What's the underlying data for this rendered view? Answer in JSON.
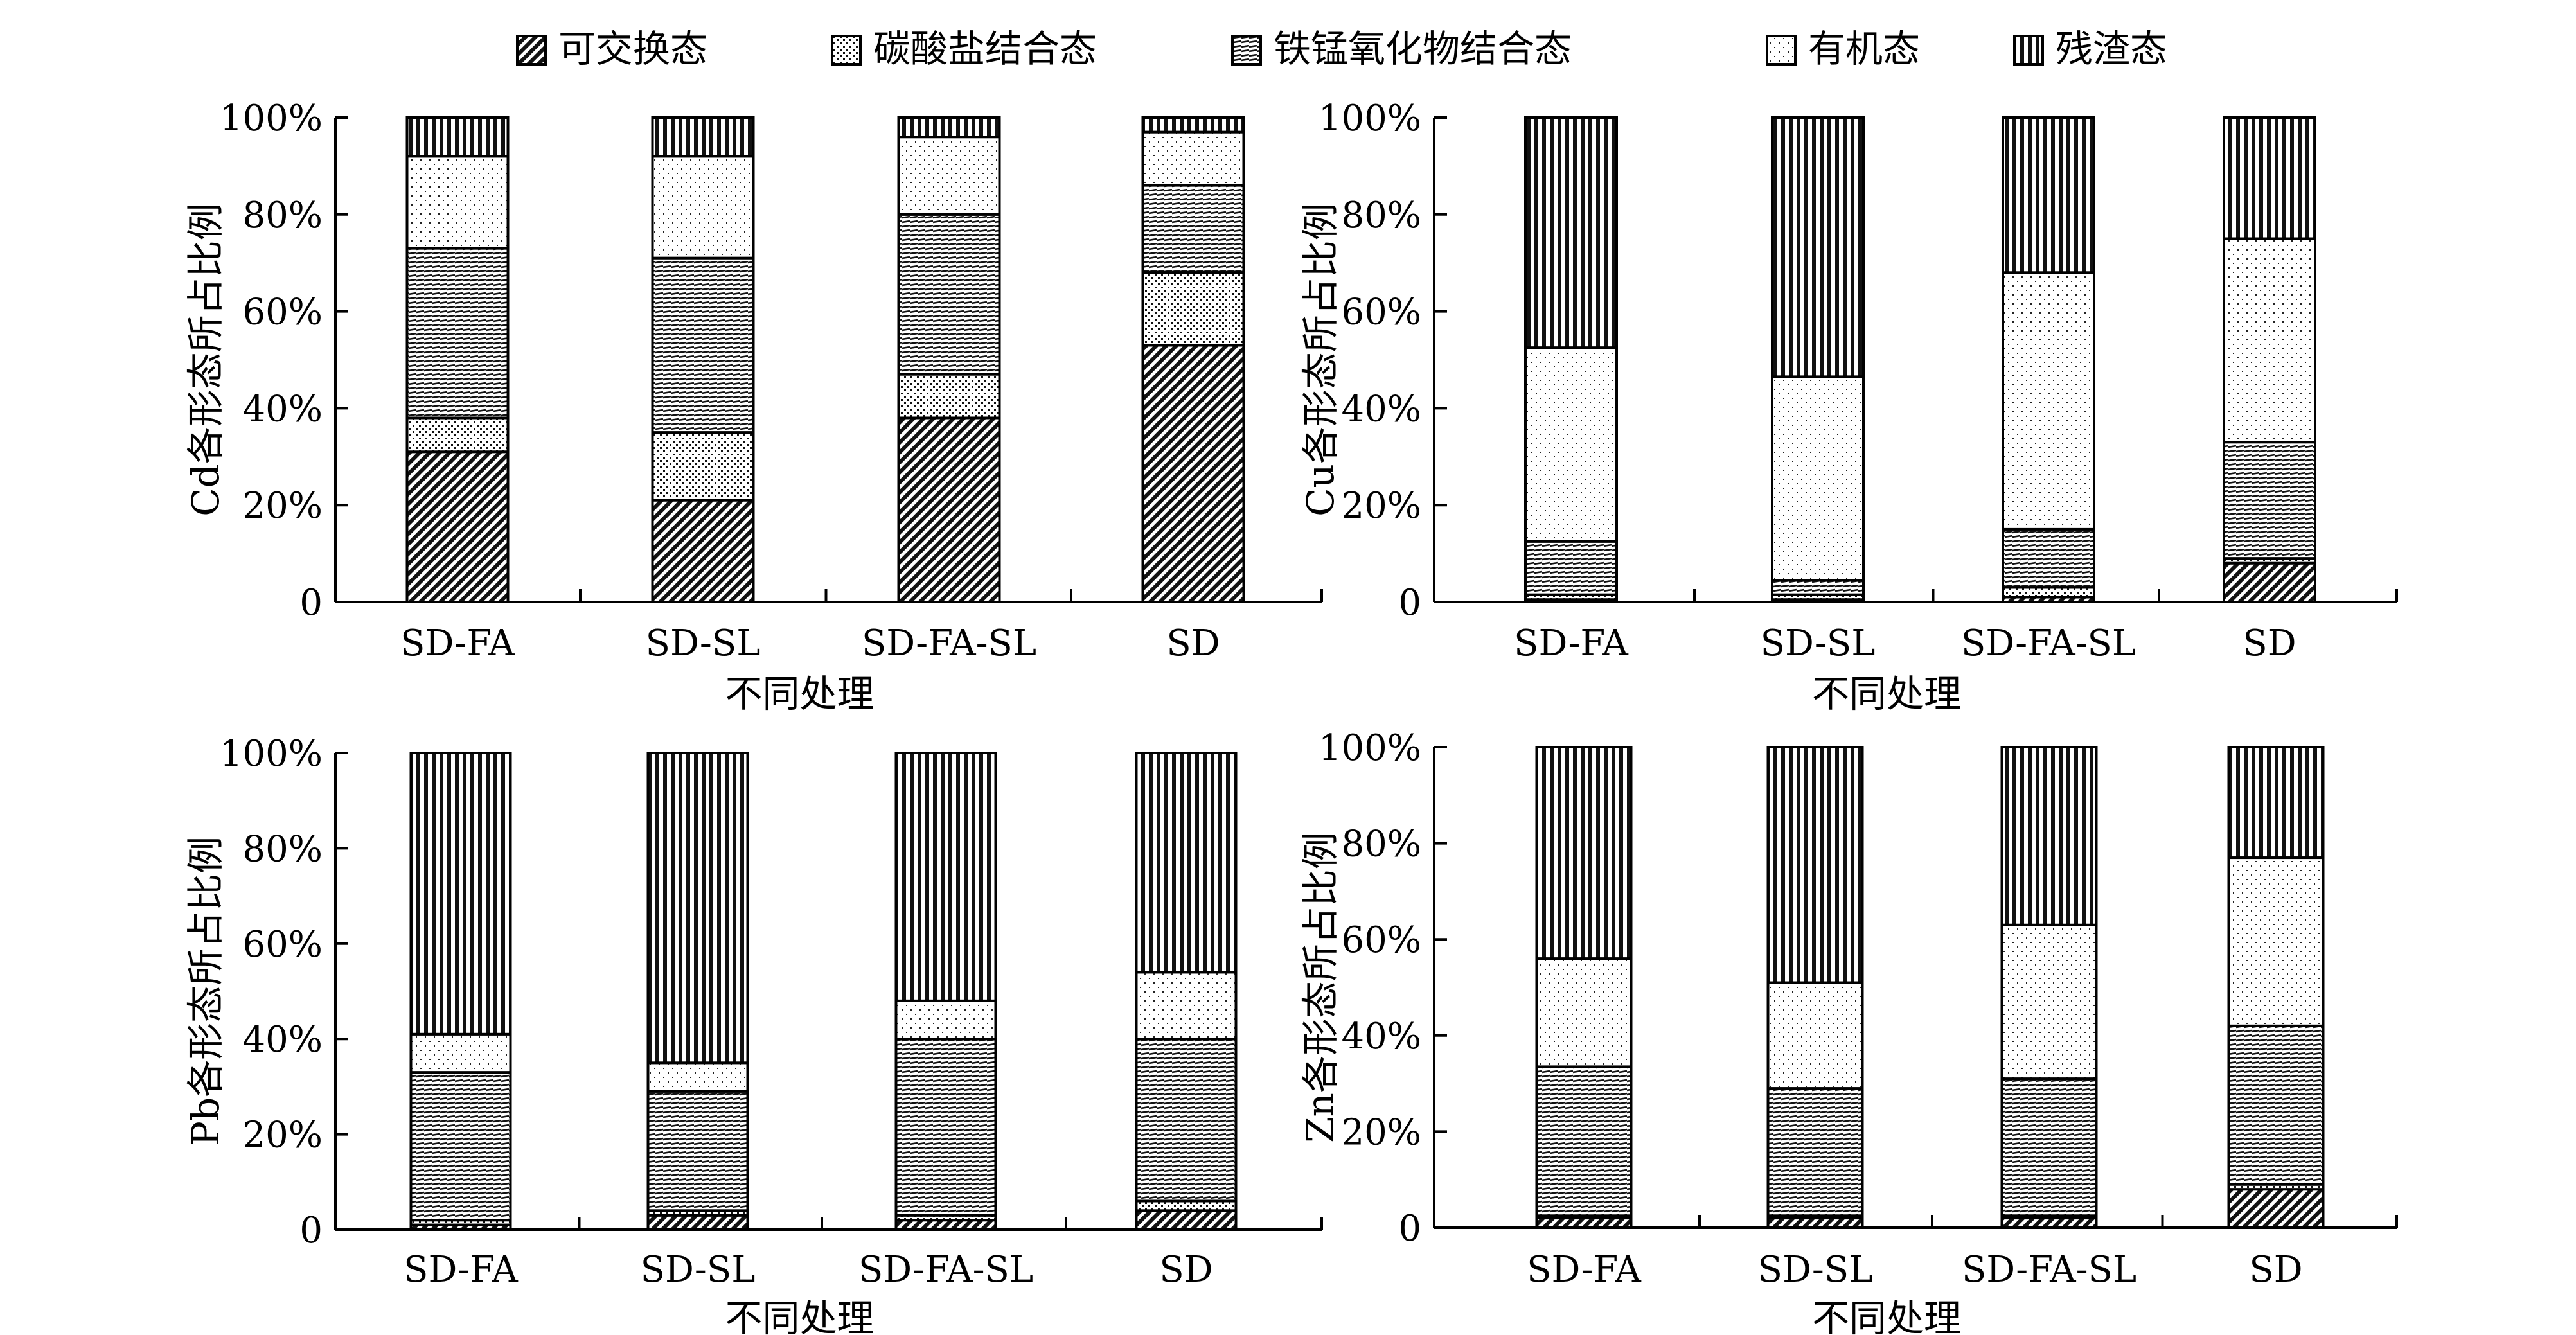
{
  "legend": [
    {
      "key": "exchangeable",
      "label": "可交换态",
      "pattern": "p-exch"
    },
    {
      "key": "carbonate",
      "label": "碳酸盐结合态",
      "pattern": "p-carb"
    },
    {
      "key": "femn_oxide",
      "label": "铁锰氧化物结合态",
      "pattern": "p-femn"
    },
    {
      "key": "organic",
      "label": "有机态",
      "pattern": "p-org"
    },
    {
      "key": "residual",
      "label": "残渣态",
      "pattern": "p-res"
    }
  ],
  "chart_data": [
    {
      "type": "bar",
      "stacked": true,
      "element": "Cd",
      "ylabel": "Cd各形态所占比例",
      "xlabel": "不同处理",
      "categories": [
        "SD-FA",
        "SD-SL",
        "SD-FA-SL",
        "SD"
      ],
      "yticks": [
        "0",
        "20%",
        "40%",
        "60%",
        "80%",
        "100%"
      ],
      "ylim": [
        0,
        100
      ],
      "series": [
        {
          "name": "可交换态",
          "values": [
            31,
            21,
            38,
            53
          ]
        },
        {
          "name": "碳酸盐结合态",
          "values": [
            7,
            14,
            9,
            15
          ]
        },
        {
          "name": "铁锰氧化物结合态",
          "values": [
            35,
            36,
            33,
            18
          ]
        },
        {
          "name": "有机态",
          "values": [
            19,
            21,
            16,
            11
          ]
        },
        {
          "name": "残渣态",
          "values": [
            8,
            8,
            4,
            3
          ]
        }
      ]
    },
    {
      "type": "bar",
      "stacked": true,
      "element": "Cu",
      "ylabel": "Cu各形态所占比例",
      "xlabel": "不同处理",
      "categories": [
        "SD-FA",
        "SD-SL",
        "SD-FA-SL",
        "SD"
      ],
      "yticks": [
        "0",
        "20%",
        "40%",
        "60%",
        "80%",
        "100%"
      ],
      "ylim": [
        0,
        100
      ],
      "series": [
        {
          "name": "可交换态",
          "values": [
            0.5,
            0.5,
            1,
            8
          ]
        },
        {
          "name": "碳酸盐结合态",
          "values": [
            1,
            1,
            2,
            1
          ]
        },
        {
          "name": "铁锰氧化物结合态",
          "values": [
            11,
            3,
            12,
            24
          ]
        },
        {
          "name": "有机态",
          "values": [
            40,
            42,
            53,
            42
          ]
        },
        {
          "name": "残渣态",
          "values": [
            47.5,
            53.5,
            32,
            25
          ]
        }
      ]
    },
    {
      "type": "bar",
      "stacked": true,
      "element": "Pb",
      "ylabel": "Pb各形态所占比例",
      "xlabel": "不同处理",
      "categories": [
        "SD-FA",
        "SD-SL",
        "SD-FA-SL",
        "SD"
      ],
      "yticks": [
        "0",
        "20%",
        "40%",
        "60%",
        "80%",
        "100%"
      ],
      "ylim": [
        0,
        100
      ],
      "series": [
        {
          "name": "可交换态",
          "values": [
            1,
            3,
            2,
            4
          ]
        },
        {
          "name": "碳酸盐结合态",
          "values": [
            1,
            1,
            1,
            2
          ]
        },
        {
          "name": "铁锰氧化物结合态",
          "values": [
            31,
            25,
            37,
            34
          ]
        },
        {
          "name": "有机态",
          "values": [
            8,
            6,
            8,
            14
          ]
        },
        {
          "name": "残渣态",
          "values": [
            59,
            65,
            52,
            46
          ]
        }
      ]
    },
    {
      "type": "bar",
      "stacked": true,
      "element": "Zn",
      "ylabel": "Zn各形态所占比例",
      "xlabel": "不同处理",
      "categories": [
        "SD-FA",
        "SD-SL",
        "SD-FA-SL",
        "SD"
      ],
      "yticks": [
        "0",
        "20%",
        "40%",
        "60%",
        "80%",
        "100%"
      ],
      "ylim": [
        0,
        100
      ],
      "series": [
        {
          "name": "可交换态",
          "values": [
            2,
            2,
            2,
            8
          ]
        },
        {
          "name": "碳酸盐结合态",
          "values": [
            0.5,
            0.5,
            0.5,
            1
          ]
        },
        {
          "name": "铁锰氧化物结合态",
          "values": [
            31,
            26.5,
            28.5,
            33
          ]
        },
        {
          "name": "有机态",
          "values": [
            22.5,
            22,
            32,
            35
          ]
        },
        {
          "name": "残渣态",
          "values": [
            44,
            49,
            37,
            23
          ]
        }
      ]
    }
  ]
}
